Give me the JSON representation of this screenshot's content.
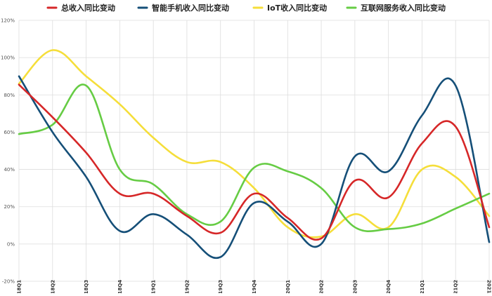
{
  "chart_data": {
    "type": "line",
    "title": "",
    "xlabel": "",
    "ylabel": "",
    "categories": [
      "2018Q1",
      "2018Q2",
      "2018Q3",
      "2018Q4",
      "2019Q1",
      "2019Q2",
      "2019Q3",
      "2019Q4",
      "2020Q1",
      "2020Q2",
      "2020Q3",
      "2020Q4",
      "2021Q1",
      "2021Q2",
      "2021Q3"
    ],
    "ylim": [
      -20,
      120
    ],
    "yticks": [
      -20,
      0,
      20,
      40,
      60,
      80,
      100,
      120
    ],
    "ytick_labels": [
      "-20%",
      "0%",
      "20%",
      "40%",
      "60%",
      "80%",
      "100%",
      "120%"
    ],
    "grid": true,
    "legend_position": "top",
    "series": [
      {
        "name": "总收入同比变动",
        "color": "#d62728",
        "values": [
          85.5,
          68,
          49,
          27,
          27,
          15,
          6,
          27,
          14,
          3,
          34,
          25,
          54,
          63,
          9
        ]
      },
      {
        "name": "智能手机收入同比变动",
        "color": "#154f78",
        "values": [
          90,
          60,
          36,
          7,
          16,
          5,
          -7,
          22,
          12,
          0,
          47,
          39,
          69,
          85,
          1
        ]
      },
      {
        "name": "IoT收入同比变动",
        "color": "#f5de3a",
        "values": [
          86,
          104,
          90,
          75,
          57,
          44,
          44,
          30,
          9,
          4,
          16,
          9,
          40,
          36,
          15
        ]
      },
      {
        "name": "互联网服务收入同比变动",
        "color": "#66cc44",
        "values": [
          59,
          64,
          85,
          40,
          32,
          16,
          12,
          41,
          39,
          30,
          9,
          8,
          11,
          19,
          27
        ]
      }
    ]
  }
}
